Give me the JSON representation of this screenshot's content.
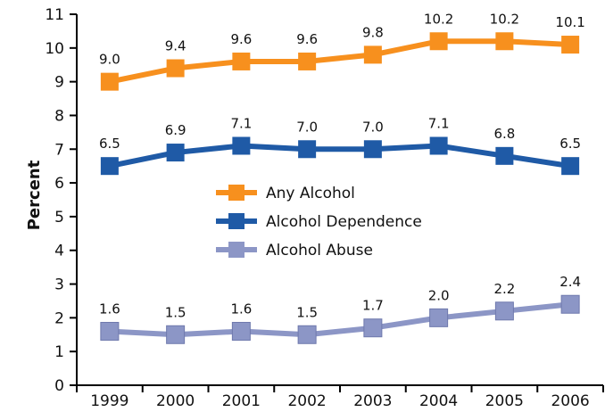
{
  "chart_data": {
    "type": "line",
    "ylabel": "Percent",
    "xlabel": "",
    "categories": [
      "1999",
      "2000",
      "2001",
      "2002",
      "2003",
      "2004",
      "2005",
      "2006"
    ],
    "ylim": [
      0,
      11
    ],
    "yticks": [
      0,
      1,
      2,
      3,
      4,
      5,
      6,
      7,
      8,
      9,
      10,
      11
    ],
    "grid": false,
    "legend_placement": "center",
    "series": [
      {
        "name": "Any Alcohol",
        "color": "#f7901e",
        "values": [
          9.0,
          9.4,
          9.6,
          9.6,
          9.8,
          10.2,
          10.2,
          10.1
        ],
        "labels": [
          "9.0",
          "9.4",
          "9.6",
          "9.6",
          "9.8",
          "10.2",
          "10.2",
          "10.1"
        ]
      },
      {
        "name": "Alcohol Dependence",
        "color": "#1f5aa6",
        "values": [
          6.5,
          6.9,
          7.1,
          7.0,
          7.0,
          7.1,
          6.8,
          6.5
        ],
        "labels": [
          "6.5",
          "6.9",
          "7.1",
          "7.0",
          "7.0",
          "7.1",
          "6.8",
          "6.5"
        ]
      },
      {
        "name": "Alcohol Abuse",
        "color": "#8c96c6",
        "values": [
          1.6,
          1.5,
          1.6,
          1.5,
          1.7,
          2.0,
          2.2,
          2.4
        ],
        "labels": [
          "1.6",
          "1.5",
          "1.6",
          "1.5",
          "1.7",
          "2.0",
          "2.2",
          "2.4"
        ]
      }
    ]
  }
}
